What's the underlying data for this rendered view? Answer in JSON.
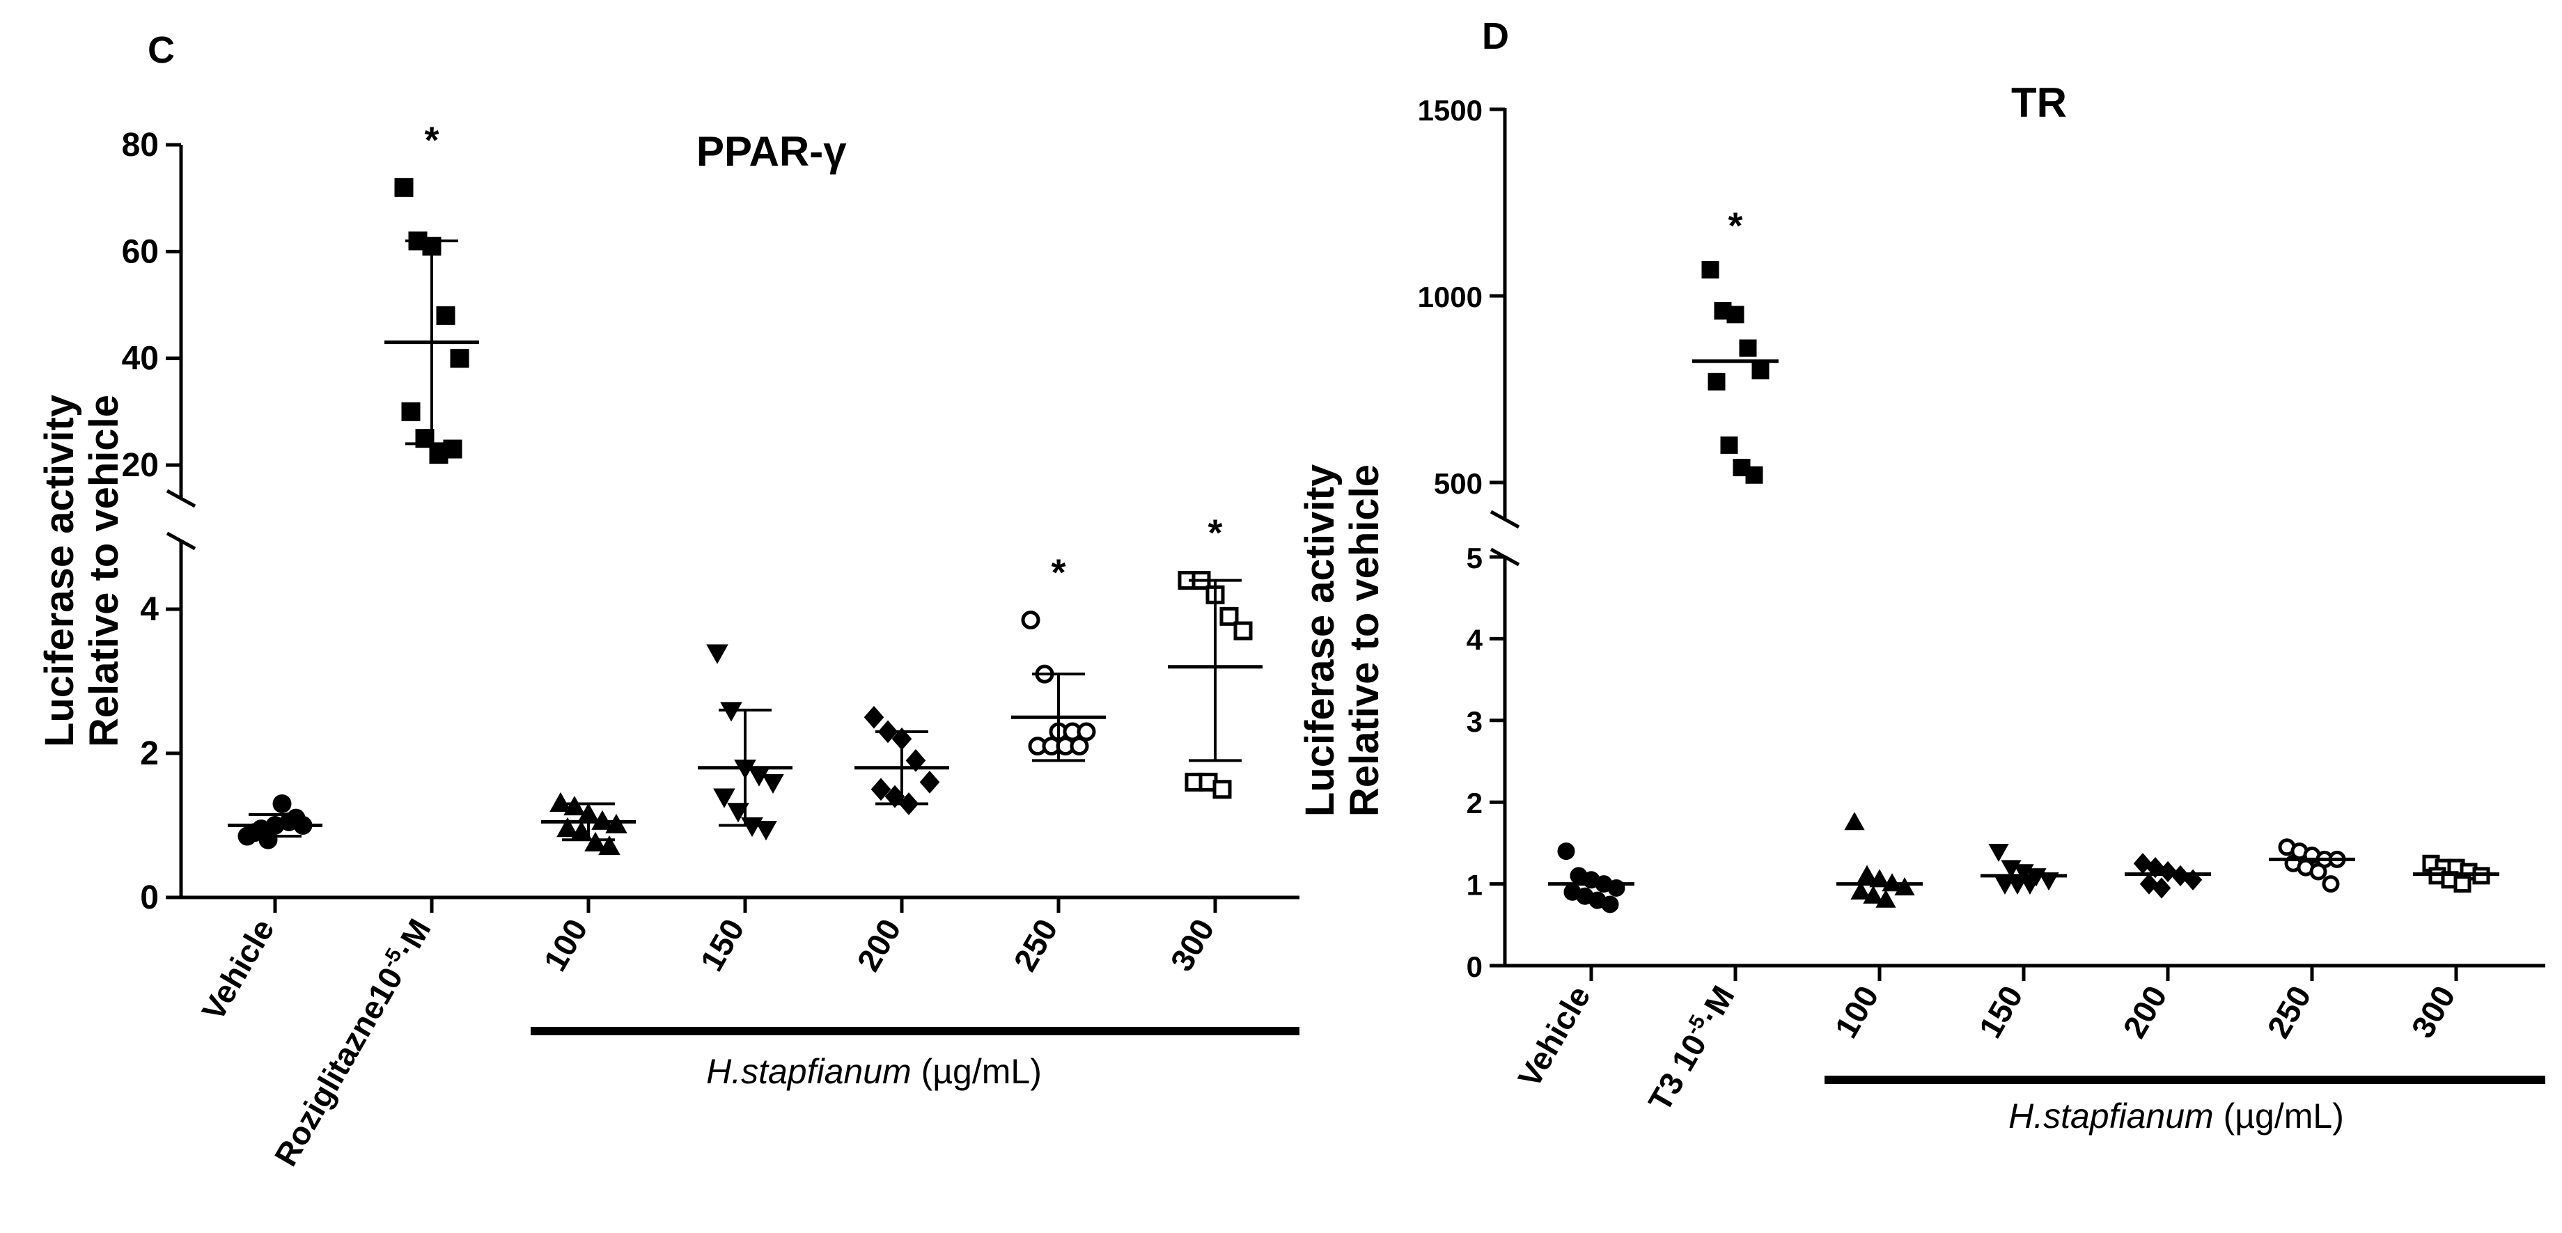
{
  "panels": {
    "C": {
      "letter": "C",
      "title": "PPAR-γ",
      "ylabel_line1": "Luciferase activity",
      "ylabel_line2": "Relative to vehicle",
      "upper_ticks": [
        "20",
        "40",
        "60",
        "80"
      ],
      "lower_ticks": [
        "0",
        "2",
        "4"
      ],
      "categories": [
        "Vehicle",
        "Roziglitazne10",
        "100",
        "150",
        "200",
        "250",
        "300"
      ],
      "rosi_sup": "-5",
      "rosi_unit": "·M",
      "extract_italic": "H.stapfianum",
      "extract_unit": " (µg/mL)"
    },
    "D": {
      "letter": "D",
      "title": "TR",
      "ylabel_line1": "Luciferase activity",
      "ylabel_line2": "Relative to vehicle",
      "upper_ticks": [
        "500",
        "1000",
        "1500"
      ],
      "lower_ticks": [
        "0",
        "1",
        "2",
        "3",
        "4",
        "5"
      ],
      "categories": [
        "Vehicle",
        "T3 10",
        "100",
        "150",
        "200",
        "250",
        "300"
      ],
      "t3_sup": "-5",
      "t3_unit": "·M",
      "extract_italic": "H.stapfianum",
      "extract_unit": " (µg/mL)"
    }
  },
  "chart_data": [
    {
      "panel": "C",
      "type": "scatter",
      "title": "PPAR-γ",
      "ylabel": "Luciferase activity Relative to vehicle",
      "xlabel": "H.stapfianum (µg/mL)",
      "categories": [
        "Vehicle",
        "Roziglitazne10-5·M",
        "100",
        "150",
        "200",
        "250",
        "300"
      ],
      "y_axis_break": {
        "lower": [
          0,
          5
        ],
        "upper": [
          15,
          80
        ]
      },
      "groups": [
        {
          "category": "Vehicle",
          "marker": "filled-circle",
          "points": [
            0.85,
            0.95,
            1.0,
            1.05,
            1.0,
            0.9,
            0.8,
            1.3,
            1.1
          ],
          "mean": 1.0,
          "sd": [
            0.85,
            1.15
          ],
          "significant": false
        },
        {
          "category": "Roziglitazne10-5·M",
          "marker": "filled-square",
          "points": [
            72,
            62,
            61,
            48,
            40,
            30,
            25,
            22,
            23
          ],
          "mean": 43,
          "sd": [
            24,
            62
          ],
          "significant": true
        },
        {
          "category": "100",
          "marker": "filled-triangle-up",
          "points": [
            1.3,
            1.25,
            1.15,
            1.05,
            1.0,
            0.95,
            0.9,
            0.75,
            0.7
          ],
          "mean": 1.05,
          "sd": [
            0.8,
            1.3
          ],
          "significant": false
        },
        {
          "category": "150",
          "marker": "filled-triangle-down",
          "points": [
            3.4,
            2.6,
            1.8,
            1.7,
            1.6,
            1.4,
            1.2,
            1.0,
            0.95
          ],
          "mean": 1.8,
          "sd": [
            1.0,
            2.6
          ],
          "significant": false
        },
        {
          "category": "200",
          "marker": "filled-diamond",
          "points": [
            2.5,
            2.3,
            2.2,
            1.9,
            1.6,
            1.5,
            1.4,
            1.3
          ],
          "mean": 1.8,
          "sd": [
            1.3,
            2.3
          ],
          "significant": false
        },
        {
          "category": "250",
          "marker": "open-circle",
          "points": [
            3.85,
            3.1,
            2.3,
            2.3,
            2.3,
            2.1,
            2.1,
            2.1,
            2.1
          ],
          "mean": 2.5,
          "sd": [
            1.9,
            3.1
          ],
          "significant": true
        },
        {
          "category": "300",
          "marker": "open-square",
          "points": [
            4.4,
            4.4,
            4.2,
            3.9,
            3.7,
            1.6,
            1.6,
            1.5
          ],
          "mean": 3.2,
          "sd": [
            1.9,
            4.4
          ],
          "significant": true
        }
      ]
    },
    {
      "panel": "D",
      "type": "scatter",
      "title": "TR",
      "ylabel": "Luciferase activity Relative to vehicle",
      "xlabel": "H.stapfianum (µg/mL)",
      "categories": [
        "Vehicle",
        "T3 10-5·M",
        "100",
        "150",
        "200",
        "250",
        "300"
      ],
      "y_axis_break": {
        "lower": [
          0,
          5
        ],
        "upper": [
          450,
          1500
        ]
      },
      "groups": [
        {
          "category": "Vehicle",
          "marker": "filled-circle",
          "points": [
            1.4,
            1.1,
            1.05,
            1.0,
            0.95,
            0.9,
            0.85,
            0.8,
            0.75
          ],
          "mean": 1.0,
          "significant": false
        },
        {
          "category": "T3 10-5·M",
          "marker": "filled-square",
          "points": [
            1070,
            960,
            950,
            860,
            800,
            770,
            600,
            540,
            520
          ],
          "mean": 825,
          "significant": true
        },
        {
          "category": "100",
          "marker": "filled-triangle-up",
          "points": [
            1.75,
            1.1,
            1.05,
            1.0,
            0.95,
            0.9,
            0.85,
            0.8
          ],
          "mean": 1.0,
          "significant": false
        },
        {
          "category": "150",
          "marker": "filled-triangle-down",
          "points": [
            1.4,
            1.2,
            1.15,
            1.1,
            1.05,
            1.0,
            1.0,
            1.0
          ],
          "mean": 1.1,
          "significant": false
        },
        {
          "category": "200",
          "marker": "filled-diamond",
          "points": [
            1.25,
            1.2,
            1.15,
            1.1,
            1.05,
            1.0,
            0.95
          ],
          "mean": 1.12,
          "significant": false
        },
        {
          "category": "250",
          "marker": "open-circle",
          "points": [
            1.45,
            1.4,
            1.35,
            1.3,
            1.3,
            1.25,
            1.2,
            1.15,
            1.0
          ],
          "mean": 1.3,
          "significant": false
        },
        {
          "category": "300",
          "marker": "open-square",
          "points": [
            1.25,
            1.2,
            1.2,
            1.15,
            1.1,
            1.1,
            1.05,
            1.0
          ],
          "mean": 1.12,
          "significant": false
        }
      ]
    }
  ]
}
